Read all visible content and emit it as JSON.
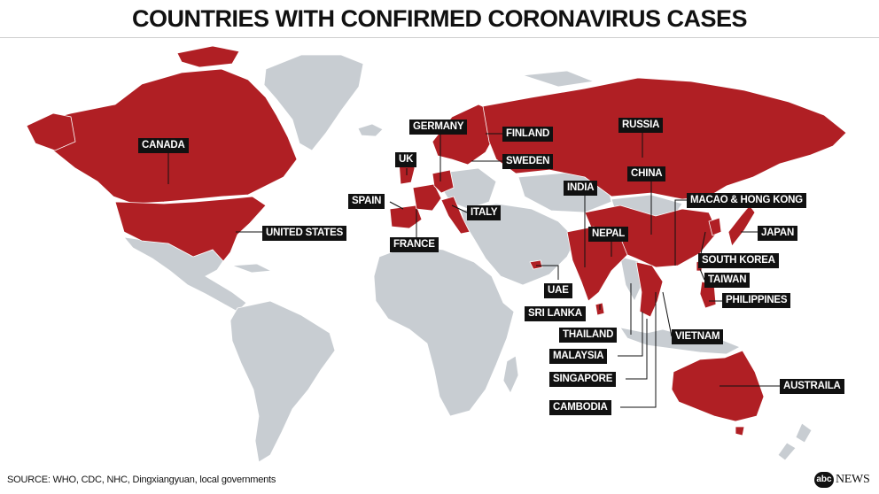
{
  "title": "COUNTRIES WITH CONFIRMED CORONAVIRUS CASES",
  "labels": {
    "canada": "CANADA",
    "united_states": "UNITED STATES",
    "uk": "UK",
    "spain": "SPAIN",
    "france": "FRANCE",
    "germany": "GERMANY",
    "italy": "ITALY",
    "finland": "FINLAND",
    "sweden": "SWEDEN",
    "russia": "RUSSIA",
    "china": "CHINA",
    "india": "INDIA",
    "nepal": "NEPAL",
    "uae": "UAE",
    "sri_lanka": "SRI LANKA",
    "thailand": "THAILAND",
    "malaysia": "MALAYSIA",
    "singapore": "SINGAPORE",
    "cambodia": "CAMBODIA",
    "vietnam": "VIETNAM",
    "macao_hong_kong": "MACAO & HONG KONG",
    "japan": "JAPAN",
    "south_korea": "SOUTH KOREA",
    "taiwan": "TAIWAN",
    "philippines": "PHILIPPINES",
    "australia": "AUSTRAILA"
  },
  "source": "SOURCE: WHO, CDC, NHC, Dingxiangyuan, local governments",
  "logo": {
    "mark": "abc",
    "text": "NEWS"
  },
  "colors": {
    "affected": "#b01f24",
    "unaffected": "#c8cdd2",
    "label_bg": "#111111",
    "label_text": "#ffffff"
  }
}
